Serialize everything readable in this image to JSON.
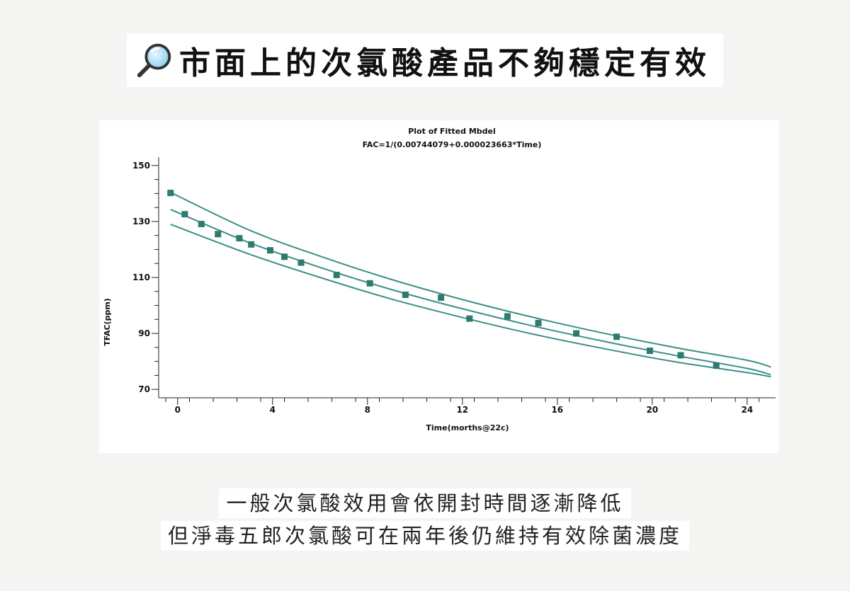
{
  "header": {
    "title": "市面上的次氯酸產品不夠穩定有效",
    "icon": "magnifier-icon"
  },
  "colors": {
    "accent": "#3a8f86",
    "marker": "#2d7a72",
    "text": "#111111",
    "background": "#f4f4f2"
  },
  "chart_data": {
    "type": "scatter",
    "title": "Plot of Fitted Mbdel",
    "subtitle": "FAC=1/(0.00744079+0.000023663*Time)",
    "xlabel": "Time(morths@22c)",
    "ylabel": "TFAC(ppm)",
    "xlim": [
      -0.8,
      25.2
    ],
    "ylim": [
      67,
      153
    ],
    "xticks": [
      0,
      4,
      8,
      12,
      16,
      20,
      24
    ],
    "yticks": [
      70,
      90,
      110,
      130,
      150
    ],
    "grid": false,
    "series": [
      {
        "type": "scatter",
        "marker": "square",
        "x": [
          -0.3,
          0.3,
          1.0,
          1.7,
          2.6,
          3.1,
          3.9,
          4.5,
          5.2,
          6.7,
          8.1,
          9.6,
          11.1,
          12.3,
          13.9,
          15.2,
          16.8,
          18.5,
          19.9,
          21.2,
          22.7
        ],
        "y": [
          140.2,
          132.6,
          129.1,
          125.5,
          124.0,
          121.8,
          119.7,
          117.4,
          115.3,
          110.9,
          107.9,
          103.8,
          102.8,
          95.3,
          96.1,
          93.7,
          90.0,
          88.8,
          83.8,
          82.2,
          78.5
        ]
      },
      {
        "type": "line",
        "x": [
          -0.3,
          3,
          6,
          9,
          12,
          15,
          18,
          21,
          24,
          25.0
        ],
        "y": [
          140.4,
          127.0,
          117.6,
          109.3,
          102.1,
          95.7,
          90.0,
          84.9,
          80.4,
          78.0
        ]
      },
      {
        "type": "line",
        "x": [
          -0.3,
          3,
          6,
          9,
          12,
          15,
          18,
          21,
          24,
          25.0
        ],
        "y": [
          134.3,
          122.5,
          113.6,
          105.7,
          98.8,
          92.6,
          87.1,
          82.1,
          77.5,
          75.2
        ]
      },
      {
        "type": "line",
        "x": [
          -0.3,
          3,
          6,
          9,
          12,
          15,
          18,
          21,
          24,
          25.0
        ],
        "y": [
          129.0,
          118.4,
          110.0,
          102.3,
          95.7,
          89.7,
          84.5,
          79.8,
          76.0,
          74.5
        ]
      }
    ]
  },
  "captions": {
    "line1": "一般次氯酸效用會依開封時間逐漸降低",
    "line2": "但淨毒五郎次氯酸可在兩年後仍維持有效除菌濃度"
  }
}
